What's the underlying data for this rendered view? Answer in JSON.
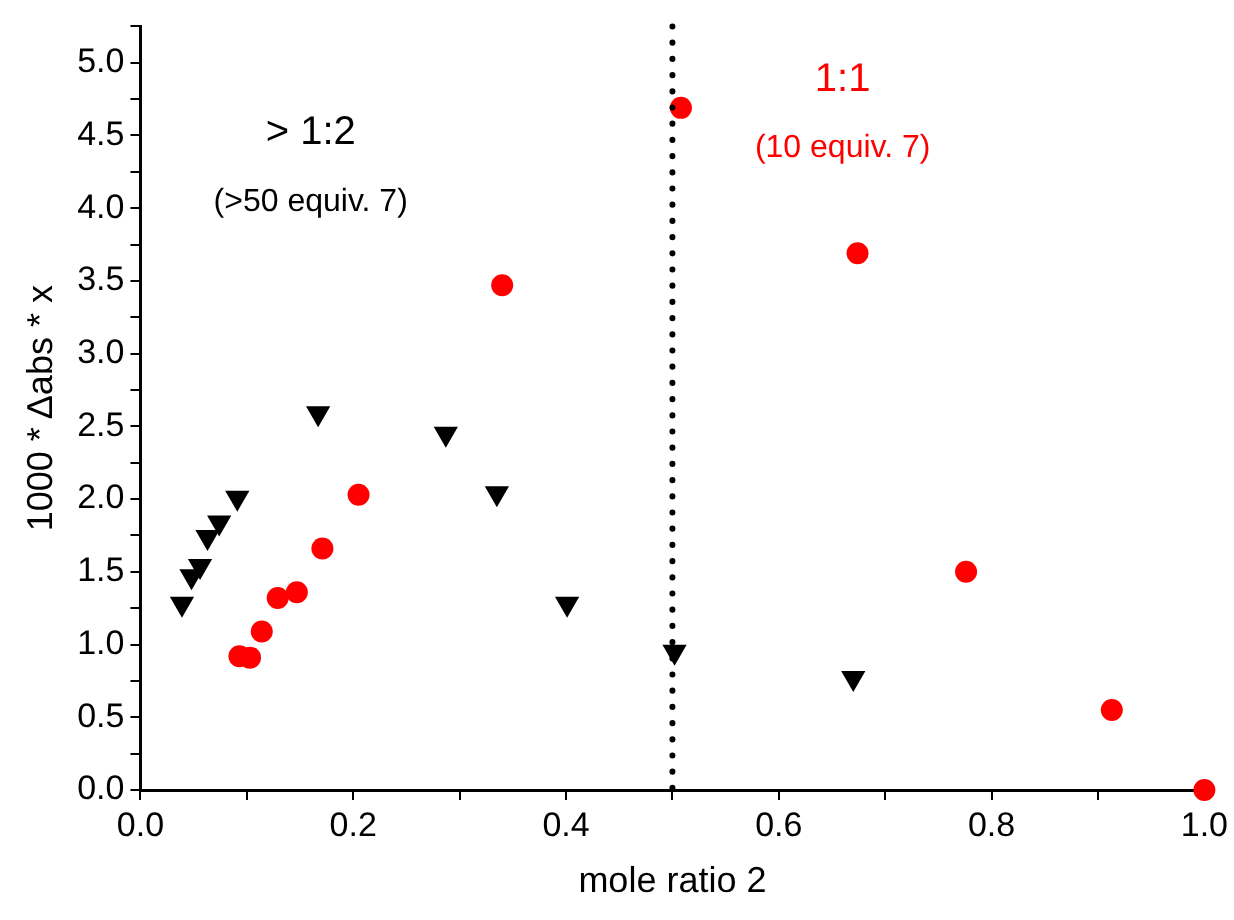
{
  "chart_data": {
    "type": "scatter",
    "xlabel": "mole ratio 2",
    "ylabel": "1000 * Δabs * x",
    "xlim": [
      0,
      1
    ],
    "ylim": [
      0,
      5.25
    ],
    "xticks": [
      {
        "value": 0,
        "label": "0.0"
      },
      {
        "value": 0.1,
        "label": null
      },
      {
        "value": 0.2,
        "label": "0.2"
      },
      {
        "value": 0.3,
        "label": null
      },
      {
        "value": 0.4,
        "label": "0.4"
      },
      {
        "value": 0.5,
        "label": null
      },
      {
        "value": 0.6,
        "label": "0.6"
      },
      {
        "value": 0.7,
        "label": null
      },
      {
        "value": 0.8,
        "label": "0.8"
      },
      {
        "value": 0.9,
        "label": null
      },
      {
        "value": 1,
        "label": "1.0"
      }
    ],
    "yticks": [
      {
        "value": 0,
        "label": "0.0"
      },
      {
        "value": 0.25,
        "label": null
      },
      {
        "value": 0.5,
        "label": "0.5"
      },
      {
        "value": 0.75,
        "label": null
      },
      {
        "value": 1,
        "label": "1.0"
      },
      {
        "value": 1.25,
        "label": null
      },
      {
        "value": 1.5,
        "label": "1.5"
      },
      {
        "value": 1.75,
        "label": null
      },
      {
        "value": 2,
        "label": "2.0"
      },
      {
        "value": 2.25,
        "label": null
      },
      {
        "value": 2.5,
        "label": "2.5"
      },
      {
        "value": 2.75,
        "label": null
      },
      {
        "value": 3,
        "label": "3.0"
      },
      {
        "value": 3.25,
        "label": null
      },
      {
        "value": 3.5,
        "label": "3.5"
      },
      {
        "value": 3.75,
        "label": null
      },
      {
        "value": 4,
        "label": "4.0"
      },
      {
        "value": 4.25,
        "label": null
      },
      {
        "value": 4.5,
        "label": "4.5"
      },
      {
        "value": 4.75,
        "label": null
      },
      {
        "value": 5,
        "label": "5.0"
      },
      {
        "value": 5.25,
        "label": null
      }
    ],
    "grid": false,
    "legend": false,
    "series": [
      {
        "color": "#000000",
        "marker": "triangle",
        "x": [
          0.039,
          0.048,
          0.056,
          0.063,
          0.074,
          0.091,
          0.167,
          0.287,
          0.335,
          0.401,
          0.502,
          0.67
        ],
        "values": [
          1.28,
          1.47,
          1.54,
          1.74,
          1.84,
          2.01,
          2.59,
          2.45,
          2.04,
          1.28,
          0.95,
          0.77
        ]
      },
      {
        "color": "#ff0000",
        "marker": "circle",
        "x": [
          0.093,
          0.103,
          0.114,
          0.129,
          0.147,
          0.171,
          0.205,
          0.34,
          0.508,
          0.674,
          0.776,
          0.913,
          1.0
        ],
        "values": [
          0.92,
          0.91,
          1.09,
          1.32,
          1.36,
          1.66,
          2.03,
          3.47,
          4.69,
          3.69,
          1.5,
          0.55,
          0.0
        ]
      }
    ],
    "ref_lines": [
      {
        "axis": "x",
        "value": 0.5,
        "color": "#000000",
        "line_style": "dotted"
      }
    ],
    "annotations": [
      "> 1:2",
      "(>50 equiv. 7)",
      "1:1",
      "(10 equiv. 7)"
    ]
  }
}
